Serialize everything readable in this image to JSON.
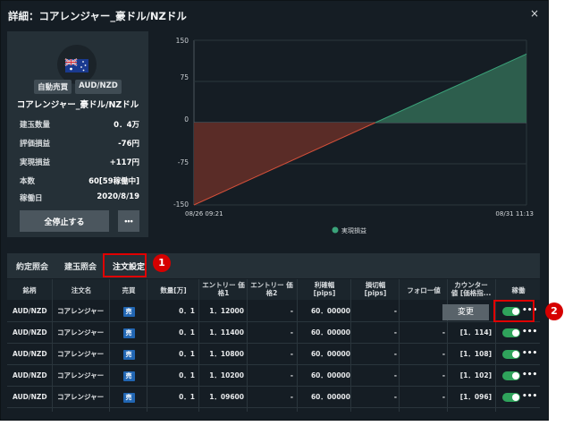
{
  "dialog": {
    "title": "詳細：コアレンジャー_豪ドル/NZドル",
    "close_label": "×"
  },
  "card": {
    "flag_icon": "australia-flag-icon",
    "badge_auto": "自動売買",
    "badge_pair": "AUD/NZD",
    "name": "コアレンジャー_豪ドル/NZドル",
    "stats": [
      {
        "key": "建玉数量",
        "value": "0．4万"
      },
      {
        "key": "評価損益",
        "value": "-76円"
      },
      {
        "key": "実現損益",
        "value": "+117円"
      },
      {
        "key": "本数",
        "value": "60[59稼働中]"
      },
      {
        "key": "稼働日",
        "value": "2020/8/19"
      }
    ],
    "stop_all_label": "全停止する",
    "more_label": "•••"
  },
  "chart_data": {
    "type": "area",
    "x": [
      "08/26 09:21",
      "08/31 11:13"
    ],
    "series": [
      {
        "name": "実現損益",
        "values": [
          -150,
          125
        ]
      }
    ],
    "yticks": [
      "150",
      "75",
      "0",
      "-75",
      "-150"
    ],
    "ylim": [
      -150,
      150
    ],
    "legend": "bottom",
    "colors": {
      "positive": "#2d5e4d",
      "negative": "#5a2c27",
      "line_pos": "#3ba37a",
      "line_neg": "#d4503a",
      "legend_dot": "#3ba37a"
    }
  },
  "tabs": [
    {
      "label": "約定照会"
    },
    {
      "label": "建玉照会"
    },
    {
      "label": "注文設定"
    }
  ],
  "callouts": {
    "one": "1",
    "two": "2"
  },
  "table": {
    "headers": [
      [
        "銘柄"
      ],
      [
        "注文名"
      ],
      [
        "売買"
      ],
      [
        "数量[万]"
      ],
      [
        "エントリー 価",
        "格1"
      ],
      [
        "エントリー 価",
        "格2"
      ],
      [
        "利確幅",
        "[pips]"
      ],
      [
        "損切幅",
        "[pips]"
      ],
      [
        "フォロー値"
      ],
      [
        "カウンター",
        "値 [価格指..."
      ],
      [
        "稼働"
      ]
    ],
    "rows": [
      {
        "pair": "AUD/NZD",
        "name": "コアレンジャー",
        "side": "売",
        "qty": "0．1",
        "entry1": "1．12000",
        "entry2": "-",
        "tp": "60．00000",
        "sl": "-",
        "follow": "-",
        "counter": ""
      },
      {
        "pair": "AUD/NZD",
        "name": "コアレンジャー",
        "side": "売",
        "qty": "0．1",
        "entry1": "1．11400",
        "entry2": "-",
        "tp": "60．00000",
        "sl": "-",
        "follow": "-",
        "counter": "[1．114]"
      },
      {
        "pair": "AUD/NZD",
        "name": "コアレンジャー",
        "side": "売",
        "qty": "0．1",
        "entry1": "1．10800",
        "entry2": "-",
        "tp": "60．00000",
        "sl": "-",
        "follow": "-",
        "counter": "[1．108]"
      },
      {
        "pair": "AUD/NZD",
        "name": "コアレンジャー",
        "side": "売",
        "qty": "0．1",
        "entry1": "1．10200",
        "entry2": "-",
        "tp": "60．00000",
        "sl": "-",
        "follow": "-",
        "counter": "[1．102]"
      },
      {
        "pair": "AUD/NZD",
        "name": "コアレンジャー",
        "side": "売",
        "qty": "0．1",
        "entry1": "1．09600",
        "entry2": "-",
        "tp": "60．00000",
        "sl": "-",
        "follow": "-",
        "counter": "[1．096]"
      }
    ],
    "tooltip_change": "変更",
    "row_more": "•••"
  }
}
